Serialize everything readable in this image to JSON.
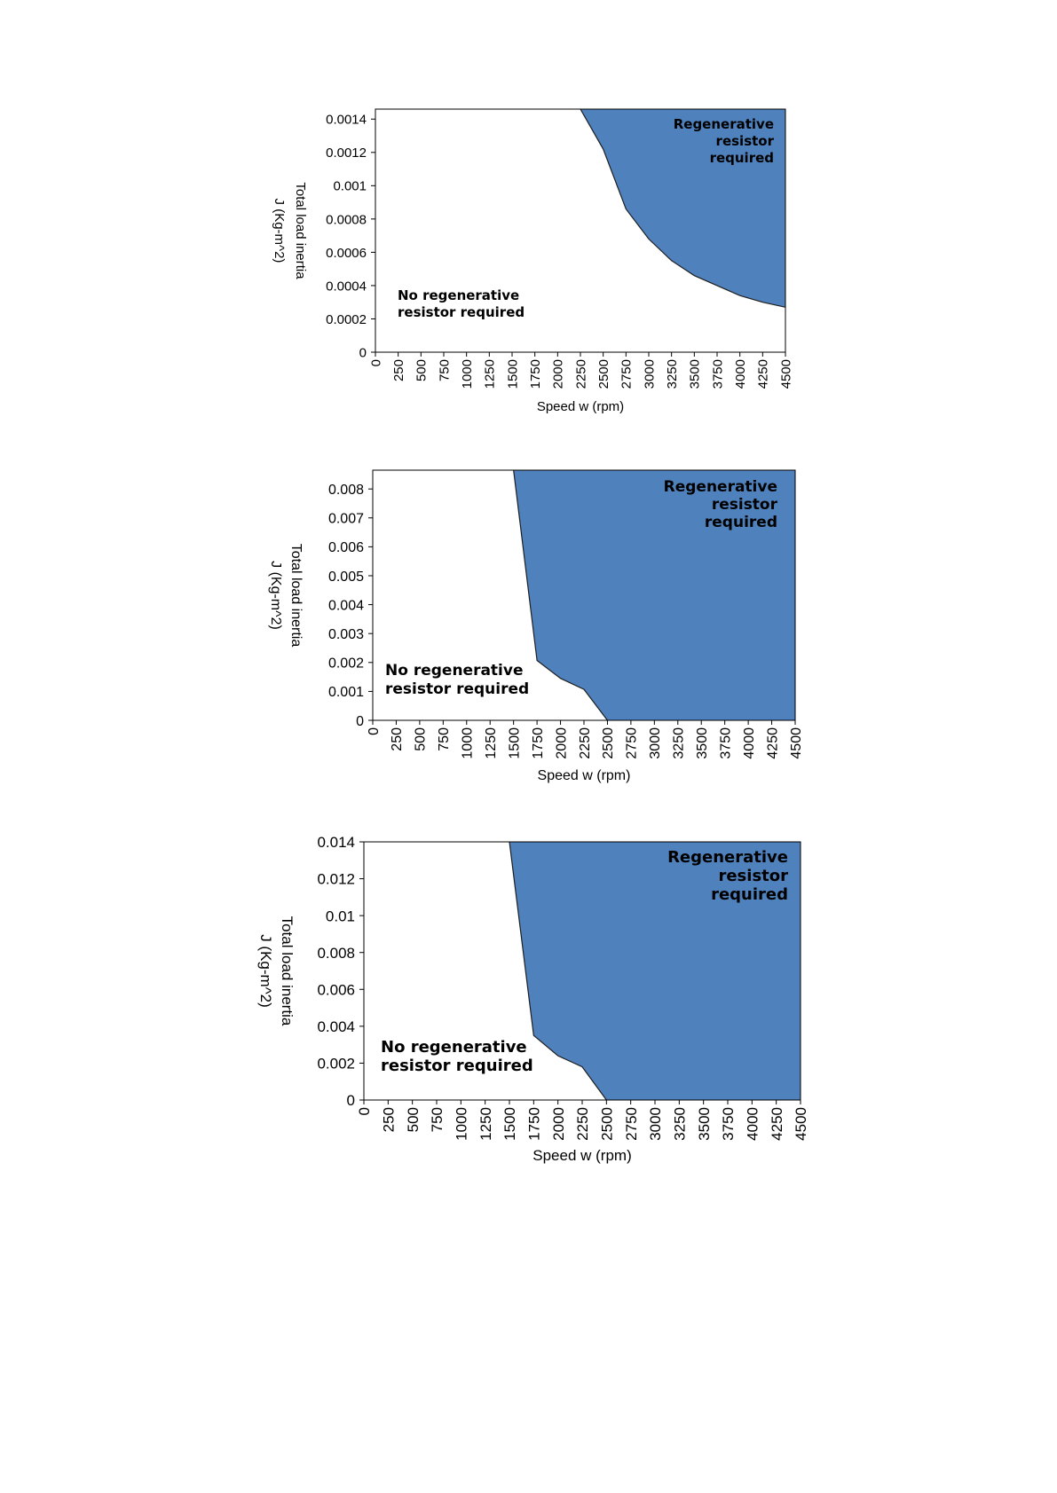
{
  "chart_data": [
    {
      "type": "area",
      "title": "",
      "xlabel": "Speed w  (rpm)",
      "ylabel_lines": [
        "Total load inertia",
        "J (Kg-m^2)"
      ],
      "x_ticks": [
        "0",
        "250",
        "500",
        "750",
        "1000",
        "1250",
        "1500",
        "1750",
        "2000",
        "2250",
        "2500",
        "2750",
        "3000",
        "3250",
        "3500",
        "3750",
        "4000",
        "4250",
        "4500"
      ],
      "y_ticks": [
        "0",
        "0.0002",
        "0.0004",
        "0.0006",
        "0.0008",
        "0.001",
        "0.0012",
        "0.0014"
      ],
      "xlim": [
        0,
        4500
      ],
      "ylim": [
        0,
        0.00146
      ],
      "fill_color": "#4f81bd",
      "boundary": {
        "x": [
          2250,
          2500,
          2750,
          3000,
          3250,
          3500,
          3750,
          4000,
          4250,
          4500
        ],
        "y": [
          0.00146,
          0.00122,
          0.00086,
          0.00068,
          0.00055,
          0.00046,
          0.0004,
          0.00034,
          0.0003,
          0.00027
        ]
      },
      "annotations": {
        "region_above": [
          "Regenerative",
          "resistor",
          "required"
        ],
        "region_below": [
          "No regenerative",
          "resistor required"
        ]
      }
    },
    {
      "type": "area",
      "title": "",
      "xlabel": "Speed w  (rpm)",
      "ylabel_lines": [
        "Total load inertia",
        "J (Kg-m^2)"
      ],
      "x_ticks": [
        "0",
        "250",
        "500",
        "750",
        "1000",
        "1250",
        "1500",
        "1750",
        "2000",
        "2250",
        "2500",
        "2750",
        "3000",
        "3250",
        "3500",
        "3750",
        "4000",
        "4250",
        "4500"
      ],
      "y_ticks": [
        "0",
        "0.001",
        "0.002",
        "0.003",
        "0.004",
        "0.005",
        "0.006",
        "0.007",
        "0.008"
      ],
      "xlim": [
        0,
        4500
      ],
      "ylim": [
        0,
        0.00865
      ],
      "fill_color": "#4f81bd",
      "boundary": {
        "x": [
          1500,
          1750,
          2000,
          2250,
          2500
        ],
        "y": [
          0.00865,
          0.00207,
          0.00145,
          0.00107,
          0
        ]
      },
      "annotations": {
        "region_above": [
          "Regenerative",
          "resistor",
          "required"
        ],
        "region_below": [
          "No regenerative",
          "resistor required"
        ]
      }
    },
    {
      "type": "area",
      "title": "",
      "xlabel": "Speed w  (rpm)",
      "ylabel_lines": [
        "Total load inertia",
        "J (Kg-m^2)"
      ],
      "x_ticks": [
        "0",
        "250",
        "500",
        "750",
        "1000",
        "1250",
        "1500",
        "1750",
        "2000",
        "2250",
        "2500",
        "2750",
        "3000",
        "3250",
        "3500",
        "3750",
        "4000",
        "4250",
        "4500"
      ],
      "y_ticks": [
        "0",
        "0.002",
        "0.004",
        "0.006",
        "0.008",
        "0.01",
        "0.012",
        "0.014"
      ],
      "xlim": [
        0,
        4500
      ],
      "ylim": [
        0,
        0.014
      ],
      "fill_color": "#4f81bd",
      "boundary": {
        "x": [
          1500,
          1750,
          2000,
          2250,
          2500
        ],
        "y": [
          0.014,
          0.0035,
          0.0024,
          0.0018,
          0
        ]
      },
      "annotations": {
        "region_above": [
          "Regenerative",
          "resistor",
          "required"
        ],
        "region_below": [
          "No regenerative",
          "resistor required"
        ]
      }
    }
  ]
}
